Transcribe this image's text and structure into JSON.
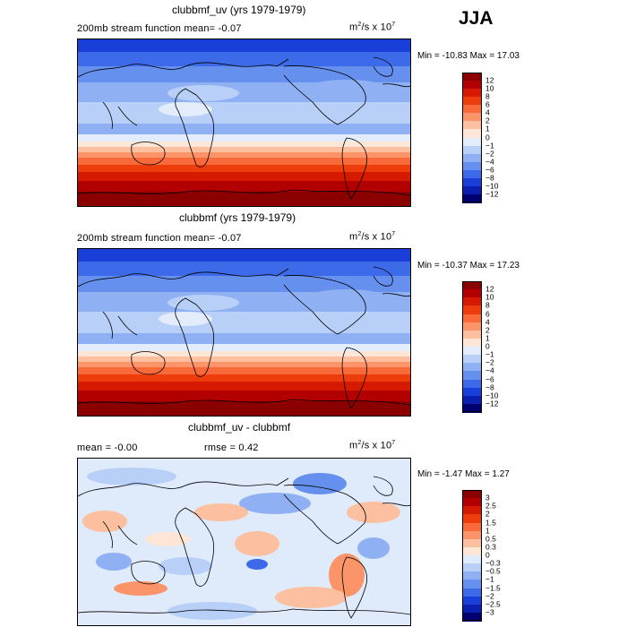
{
  "season": "JJA",
  "units_base": "m",
  "units_rest": "/s x 10",
  "units_exp1": "2",
  "units_exp2": "7",
  "panels": [
    {
      "title": "clubbmf_uv (yrs 1979-1979)",
      "subtitle": "200mb stream function  mean=  -0.07",
      "minmax": "Min = -10.83 Max =  17.03",
      "kind": "field"
    },
    {
      "title": "clubbmf (yrs 1979-1979)",
      "subtitle": "200mb stream function  mean=  -0.07",
      "minmax": "Min = -10.37 Max =  17.23",
      "kind": "field"
    },
    {
      "title": "clubbmf_uv - clubbmf",
      "subtitle_left": "mean =  -0.00",
      "subtitle_mid": "rmse =   0.42",
      "minmax": "Min =  -1.47 Max =   1.27",
      "kind": "diff"
    }
  ],
  "chart_data": [
    {
      "type": "heatmap",
      "title": "clubbmf_uv (yrs 1979-1979)",
      "variable": "200mb stream function",
      "mean": -0.07,
      "min": -10.83,
      "max": 17.03,
      "levels": [
        -12,
        -10,
        -8,
        -6,
        -4,
        -2,
        -1,
        0,
        1,
        2,
        4,
        6,
        8,
        10,
        12
      ],
      "level_labels": [
        "12",
        "10",
        "8",
        "6",
        "4",
        "2",
        "1",
        "0",
        "−1",
        "−2",
        "−4",
        "−6",
        "−8",
        "−10",
        "−12"
      ]
    },
    {
      "type": "heatmap",
      "title": "clubbmf (yrs 1979-1979)",
      "variable": "200mb stream function",
      "mean": -0.07,
      "min": -10.37,
      "max": 17.23,
      "levels": [
        -12,
        -10,
        -8,
        -6,
        -4,
        -2,
        -1,
        0,
        1,
        2,
        4,
        6,
        8,
        10,
        12
      ],
      "level_labels": [
        "12",
        "10",
        "8",
        "6",
        "4",
        "2",
        "1",
        "0",
        "−1",
        "−2",
        "−4",
        "−6",
        "−8",
        "−10",
        "−12"
      ]
    },
    {
      "type": "heatmap",
      "title": "clubbmf_uv - clubbmf",
      "mean": -0.0,
      "rmse": 0.42,
      "min": -1.47,
      "max": 1.27,
      "levels": [
        -3,
        -2.5,
        -2,
        -1.5,
        -1,
        -0.5,
        -0.3,
        0,
        0.3,
        0.5,
        1,
        1.5,
        2,
        2.5,
        3
      ],
      "level_labels": [
        "3",
        "2.5",
        "2",
        "1.5",
        "1",
        "0.5",
        "0.3",
        "0",
        "−0.3",
        "−0.5",
        "−1",
        "−1.5",
        "−2",
        "−2.5",
        "−3"
      ]
    }
  ],
  "colors": {
    "field_scale": [
      "#8b0000",
      "#b20000",
      "#d51a00",
      "#ee3d0c",
      "#f86a3a",
      "#fb9468",
      "#fcbfa0",
      "#fde6d6",
      "#e2ecfb",
      "#b8cff7",
      "#8fb0f3",
      "#6690ee",
      "#3c6ae8",
      "#1a3ed8",
      "#0a1fb0",
      "#000070"
    ],
    "diff_scale": [
      "#8b0000",
      "#b20000",
      "#d51a00",
      "#ee3d0c",
      "#f86a3a",
      "#fb9468",
      "#fcbfa0",
      "#fde6d6",
      "#dfeafa",
      "#b8cff7",
      "#8fb0f3",
      "#6690ee",
      "#3c6ae8",
      "#1a3ed8",
      "#0a1fb0",
      "#000070"
    ]
  }
}
